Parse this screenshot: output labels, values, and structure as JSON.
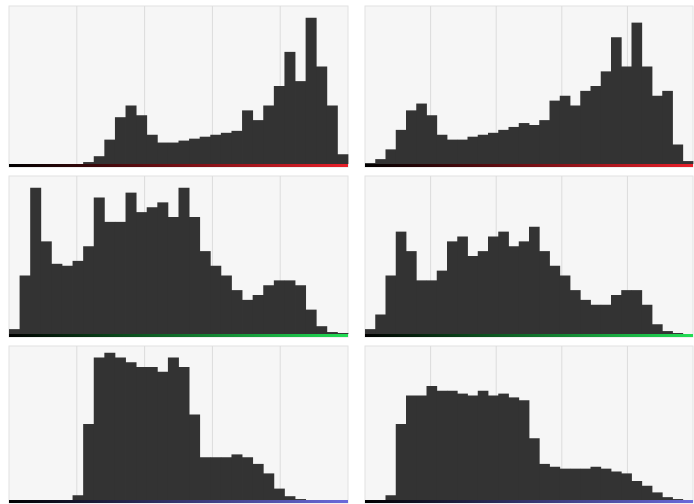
{
  "chart_data": [
    {
      "type": "histogram",
      "color": "#e8202a",
      "fill": "#333333",
      "xlim": [
        0,
        256
      ],
      "xticks": [
        51.2,
        102.4,
        153.6,
        204.8
      ],
      "ylim": [
        0,
        160
      ],
      "grid": true,
      "bins": [
        0,
        8,
        16,
        24,
        32,
        40,
        48,
        56,
        64,
        72,
        80,
        88,
        96,
        104,
        112,
        120,
        128,
        136,
        144,
        152,
        160,
        168,
        176,
        184,
        192,
        200,
        208,
        216,
        224,
        232,
        240,
        248,
        256
      ],
      "counts": [
        0,
        0,
        0,
        0,
        0,
        0,
        0,
        2,
        8,
        25,
        48,
        60,
        50,
        30,
        22,
        22,
        24,
        26,
        28,
        30,
        32,
        34,
        55,
        45,
        60,
        80,
        115,
        85,
        150,
        100,
        60,
        10
      ]
    },
    {
      "type": "histogram",
      "color": "#e8202a",
      "fill": "#333333",
      "xlim": [
        0,
        256
      ],
      "xticks": [
        51.2,
        102.4,
        153.6,
        204.8
      ],
      "ylim": [
        0,
        160
      ],
      "grid": true,
      "bins": [
        0,
        8,
        16,
        24,
        32,
        40,
        48,
        56,
        64,
        72,
        80,
        88,
        96,
        104,
        112,
        120,
        128,
        136,
        144,
        152,
        160,
        168,
        176,
        184,
        192,
        200,
        208,
        216,
        224,
        232,
        240,
        248,
        256
      ],
      "counts": [
        1,
        5,
        15,
        35,
        55,
        62,
        50,
        30,
        25,
        25,
        28,
        30,
        32,
        35,
        38,
        42,
        40,
        45,
        65,
        70,
        60,
        75,
        80,
        95,
        130,
        100,
        145,
        100,
        70,
        75,
        20,
        3
      ]
    },
    {
      "type": "histogram",
      "color": "#22dd55",
      "fill": "#333333",
      "xlim": [
        0,
        256
      ],
      "xticks": [
        51.2,
        102.4,
        153.6,
        204.8
      ],
      "ylim": [
        0,
        160
      ],
      "grid": true,
      "bins": [
        0,
        8,
        16,
        24,
        32,
        40,
        48,
        56,
        64,
        72,
        80,
        88,
        96,
        104,
        112,
        120,
        128,
        136,
        144,
        152,
        160,
        168,
        176,
        184,
        192,
        200,
        208,
        216,
        224,
        232,
        240,
        248,
        256
      ],
      "counts": [
        5,
        60,
        150,
        95,
        72,
        70,
        75,
        90,
        140,
        115,
        115,
        145,
        125,
        130,
        135,
        120,
        150,
        120,
        85,
        70,
        60,
        45,
        35,
        40,
        50,
        55,
        55,
        50,
        25,
        8,
        2,
        1
      ]
    },
    {
      "type": "histogram",
      "color": "#22dd55",
      "fill": "#333333",
      "xlim": [
        0,
        256
      ],
      "xticks": [
        51.2,
        102.4,
        153.6,
        204.8
      ],
      "ylim": [
        0,
        160
      ],
      "grid": true,
      "bins": [
        0,
        8,
        16,
        24,
        32,
        40,
        48,
        56,
        64,
        72,
        80,
        88,
        96,
        104,
        112,
        120,
        128,
        136,
        144,
        152,
        160,
        168,
        176,
        184,
        192,
        200,
        208,
        216,
        224,
        232,
        240,
        248,
        256
      ],
      "counts": [
        5,
        20,
        60,
        105,
        85,
        55,
        55,
        65,
        95,
        100,
        80,
        85,
        100,
        105,
        90,
        95,
        110,
        85,
        70,
        60,
        45,
        35,
        30,
        30,
        40,
        45,
        45,
        30,
        10,
        3,
        1,
        0
      ]
    },
    {
      "type": "histogram",
      "color": "#6a6adb",
      "fill": "#333333",
      "xlim": [
        0,
        256
      ],
      "xticks": [
        51.2,
        102.4,
        153.6,
        204.8
      ],
      "ylim": [
        0,
        160
      ],
      "grid": true,
      "bins": [
        0,
        8,
        16,
        24,
        32,
        40,
        48,
        56,
        64,
        72,
        80,
        88,
        96,
        104,
        112,
        120,
        128,
        136,
        144,
        152,
        160,
        168,
        176,
        184,
        192,
        200,
        208,
        216,
        224,
        232,
        240,
        248,
        256
      ],
      "counts": [
        0,
        0,
        0,
        0,
        0,
        0,
        5,
        80,
        150,
        155,
        150,
        145,
        140,
        140,
        135,
        150,
        140,
        90,
        45,
        45,
        45,
        48,
        45,
        38,
        28,
        12,
        4,
        1,
        0,
        0,
        0,
        0
      ]
    },
    {
      "type": "histogram",
      "color": "#6a6adb",
      "fill": "#333333",
      "xlim": [
        0,
        256
      ],
      "xticks": [
        51.2,
        102.4,
        153.6,
        204.8
      ],
      "ylim": [
        0,
        160
      ],
      "grid": true,
      "bins": [
        0,
        8,
        16,
        24,
        32,
        40,
        48,
        56,
        64,
        72,
        80,
        88,
        96,
        104,
        112,
        120,
        128,
        136,
        144,
        152,
        160,
        168,
        176,
        184,
        192,
        200,
        208,
        216,
        224,
        232,
        240,
        248,
        256
      ],
      "counts": [
        0,
        0,
        5,
        80,
        110,
        110,
        120,
        115,
        115,
        112,
        110,
        115,
        110,
        112,
        108,
        105,
        65,
        38,
        35,
        33,
        33,
        33,
        35,
        33,
        30,
        28,
        20,
        15,
        8,
        3,
        1,
        0
      ]
    }
  ]
}
